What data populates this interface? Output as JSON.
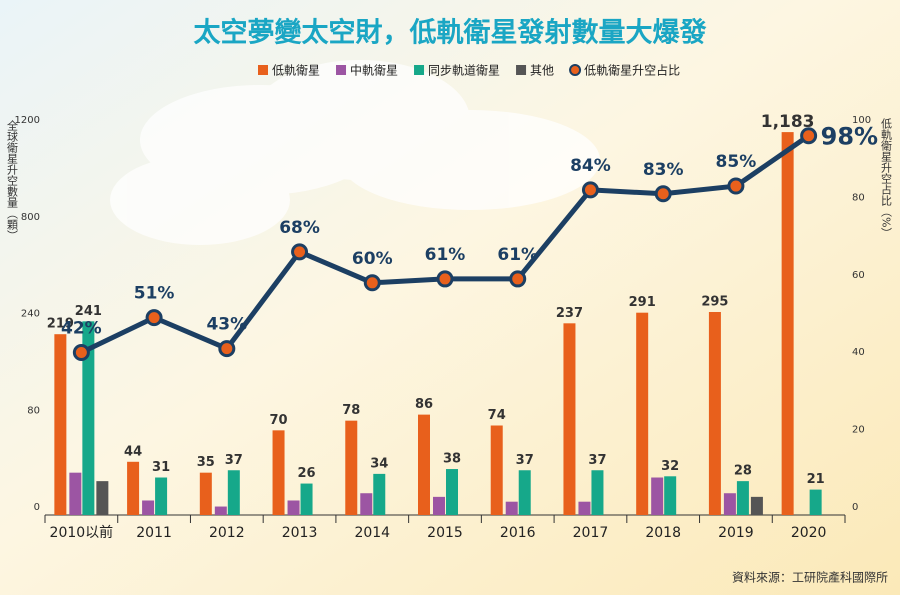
{
  "chart_data": {
    "type": "bar",
    "title": "太空夢變太空財，低軌衛星發射數量大爆發",
    "y_label": "全球衛星升空數量（顆）",
    "y2_label": "低軌衛星升空占比（%）",
    "source": "資料來源：工研院產科國際所",
    "categories": [
      "2010以前",
      "2011",
      "2012",
      "2013",
      "2014",
      "2015",
      "2016",
      "2017",
      "2018",
      "2019",
      "2020"
    ],
    "ylim": [
      0,
      1200
    ],
    "yticks": [
      0,
      80,
      240,
      800,
      1200
    ],
    "y2lim": [
      0,
      100
    ],
    "y2ticks": [
      0,
      20,
      40,
      60,
      80,
      100
    ],
    "series": [
      {
        "name": "低軌衛星",
        "color": "#e8601c",
        "values": [
          219,
          44,
          35,
          70,
          78,
          86,
          74,
          237,
          291,
          295,
          1183
        ],
        "value_labels": [
          "219",
          "44",
          "35",
          "70",
          "78",
          "86",
          "74",
          "237",
          "291",
          "295",
          "1,183"
        ]
      },
      {
        "name": "中軌衛星",
        "color": "#9c55a3",
        "values": [
          35,
          12,
          7,
          12,
          18,
          15,
          11,
          11,
          31,
          18,
          null
        ]
      },
      {
        "name": "同步軌道衛星",
        "color": "#16a88a",
        "values": [
          241,
          31,
          37,
          26,
          34,
          38,
          37,
          37,
          32,
          28,
          21
        ]
      },
      {
        "name": "其他",
        "color": "#555555",
        "values": [
          28,
          null,
          null,
          null,
          null,
          null,
          null,
          null,
          null,
          15,
          null
        ]
      },
      {
        "name": "低軌衛星升空占比",
        "type": "line",
        "axis": "y2",
        "color": "#1c3f63",
        "marker_color": "#e8601c",
        "values": [
          42,
          51,
          43,
          68,
          60,
          61,
          61,
          84,
          83,
          85,
          98
        ],
        "value_labels": [
          "42%",
          "51%",
          "43%",
          "68%",
          "60%",
          "61%",
          "61%",
          "84%",
          "83%",
          "85%",
          "98%"
        ]
      }
    ]
  }
}
